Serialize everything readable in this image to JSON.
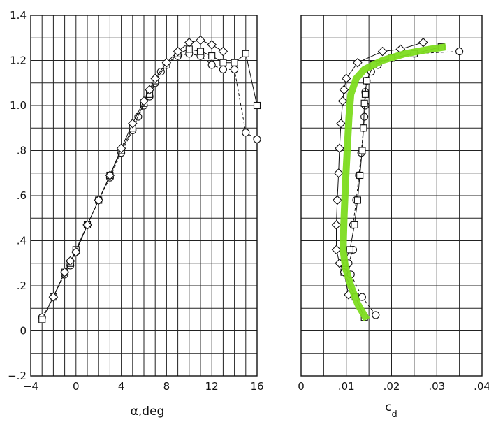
{
  "chart_data": [
    {
      "type": "line",
      "xlabel": "α,deg",
      "ylabel": "",
      "xlim": [
        -4,
        16
      ],
      "ylim": [
        -0.2,
        1.4
      ],
      "x_ticks": [
        "−4",
        "0",
        "4",
        "8",
        "12",
        "16"
      ],
      "x_tick_values": [
        -4,
        0,
        4,
        8,
        12,
        16
      ],
      "y_ticks": [
        "−.2",
        "0",
        ".2",
        ".4",
        ".6",
        ".8",
        "1.0",
        "1.2",
        "1.4"
      ],
      "y_tick_values": [
        -0.2,
        0,
        0.2,
        0.4,
        0.6,
        0.8,
        1.0,
        1.2,
        1.4
      ],
      "grid": true,
      "series": [
        {
          "marker": "circle",
          "dashed": true,
          "points": [
            [
              -3,
              0.06
            ],
            [
              -2,
              0.15
            ],
            [
              -1,
              0.25
            ],
            [
              -0.5,
              0.29
            ],
            [
              0,
              0.35
            ],
            [
              1,
              0.47
            ],
            [
              2,
              0.58
            ],
            [
              3,
              0.68
            ],
            [
              4,
              0.79
            ],
            [
              5,
              0.89
            ],
            [
              5.5,
              0.95
            ],
            [
              6,
              1.0
            ],
            [
              6.5,
              1.04
            ],
            [
              7,
              1.1
            ],
            [
              7.5,
              1.15
            ],
            [
              8,
              1.18
            ],
            [
              9,
              1.22
            ],
            [
              10,
              1.23
            ],
            [
              11,
              1.22
            ],
            [
              12,
              1.18
            ],
            [
              13,
              1.16
            ],
            [
              14,
              1.16
            ],
            [
              15,
              0.88
            ],
            [
              16,
              0.85
            ]
          ]
        },
        {
          "marker": "square",
          "dashed": false,
          "points": [
            [
              -3,
              0.05
            ],
            [
              -2,
              0.15
            ],
            [
              -1,
              0.26
            ],
            [
              -0.5,
              0.3
            ],
            [
              0,
              0.36
            ],
            [
              1,
              0.47
            ],
            [
              2,
              0.58
            ],
            [
              3,
              0.69
            ],
            [
              4,
              0.8
            ],
            [
              5,
              0.9
            ],
            [
              6,
              1.01
            ],
            [
              6.5,
              1.05
            ],
            [
              7,
              1.11
            ],
            [
              8,
              1.18
            ],
            [
              9,
              1.23
            ],
            [
              10,
              1.25
            ],
            [
              11,
              1.24
            ],
            [
              12,
              1.22
            ],
            [
              13,
              1.19
            ],
            [
              14,
              1.19
            ],
            [
              15,
              1.23
            ],
            [
              16,
              1.0
            ]
          ]
        },
        {
          "marker": "diamond",
          "dashed": false,
          "points": [
            [
              -2,
              0.15
            ],
            [
              -1,
              0.26
            ],
            [
              -0.5,
              0.31
            ],
            [
              0,
              0.35
            ],
            [
              1,
              0.47
            ],
            [
              2,
              0.58
            ],
            [
              3,
              0.69
            ],
            [
              4,
              0.81
            ],
            [
              5,
              0.92
            ],
            [
              6,
              1.02
            ],
            [
              6.5,
              1.07
            ],
            [
              7,
              1.12
            ],
            [
              8,
              1.19
            ],
            [
              9,
              1.24
            ],
            [
              10,
              1.28
            ],
            [
              11,
              1.29
            ],
            [
              12,
              1.27
            ],
            [
              13,
              1.24
            ]
          ]
        }
      ]
    },
    {
      "type": "line",
      "xlabel": "c_d",
      "xlabel_main": "c",
      "xlabel_sub": "d",
      "ylabel": "",
      "xlim": [
        0,
        0.04
      ],
      "ylim": [
        -0.2,
        1.4
      ],
      "x_ticks": [
        "0",
        ".01",
        ".02",
        ".03",
        ".04"
      ],
      "x_tick_values": [
        0,
        0.01,
        0.02,
        0.03,
        0.04
      ],
      "grid": true,
      "series": [
        {
          "marker": "circle",
          "dashed": true,
          "points": [
            [
              0.0165,
              0.07
            ],
            [
              0.0135,
              0.15
            ],
            [
              0.011,
              0.25
            ],
            [
              0.0105,
              0.3
            ],
            [
              0.0115,
              0.36
            ],
            [
              0.0115,
              0.47
            ],
            [
              0.0122,
              0.58
            ],
            [
              0.0128,
              0.69
            ],
            [
              0.0133,
              0.79
            ],
            [
              0.0138,
              0.9
            ],
            [
              0.014,
              0.95
            ],
            [
              0.0142,
              1.0
            ],
            [
              0.0142,
              1.06
            ],
            [
              0.0145,
              1.11
            ],
            [
              0.0155,
              1.15
            ],
            [
              0.017,
              1.18
            ],
            [
              0.02,
              1.21
            ],
            [
              0.025,
              1.23
            ],
            [
              0.035,
              1.24
            ]
          ]
        },
        {
          "marker": "square",
          "dashed": false,
          "points": [
            [
              0.014,
              0.06
            ],
            [
              0.012,
              0.15
            ],
            [
              0.0095,
              0.26
            ],
            [
              0.0095,
              0.3
            ],
            [
              0.0108,
              0.36
            ],
            [
              0.0118,
              0.47
            ],
            [
              0.0125,
              0.58
            ],
            [
              0.013,
              0.69
            ],
            [
              0.0135,
              0.8
            ],
            [
              0.0138,
              0.9
            ],
            [
              0.014,
              1.01
            ],
            [
              0.0142,
              1.05
            ],
            [
              0.0145,
              1.11
            ],
            [
              0.016,
              1.18
            ],
            [
              0.02,
              1.21
            ],
            [
              0.025,
              1.23
            ],
            [
              0.031,
              1.26
            ]
          ]
        },
        {
          "marker": "diamond",
          "dashed": false,
          "points": [
            [
              0.0105,
              0.16
            ],
            [
              0.0095,
              0.26
            ],
            [
              0.0085,
              0.3
            ],
            [
              0.0078,
              0.36
            ],
            [
              0.0078,
              0.47
            ],
            [
              0.008,
              0.58
            ],
            [
              0.0083,
              0.7
            ],
            [
              0.0085,
              0.81
            ],
            [
              0.0088,
              0.92
            ],
            [
              0.0092,
              1.02
            ],
            [
              0.0095,
              1.07
            ],
            [
              0.01,
              1.12
            ],
            [
              0.0125,
              1.19
            ],
            [
              0.018,
              1.24
            ],
            [
              0.022,
              1.25
            ],
            [
              0.027,
              1.28
            ]
          ]
        }
      ],
      "overlay": {
        "color": "#7ddc1f",
        "points": [
          [
            0.0145,
            0.05
          ],
          [
            0.0125,
            0.12
          ],
          [
            0.011,
            0.2
          ],
          [
            0.0098,
            0.28
          ],
          [
            0.0093,
            0.36
          ],
          [
            0.0095,
            0.5
          ],
          [
            0.0098,
            0.65
          ],
          [
            0.0102,
            0.8
          ],
          [
            0.0106,
            0.95
          ],
          [
            0.011,
            1.05
          ],
          [
            0.0122,
            1.12
          ],
          [
            0.014,
            1.16
          ],
          [
            0.018,
            1.2
          ],
          [
            0.023,
            1.23
          ],
          [
            0.0285,
            1.25
          ],
          [
            0.032,
            1.26
          ]
        ]
      }
    }
  ]
}
